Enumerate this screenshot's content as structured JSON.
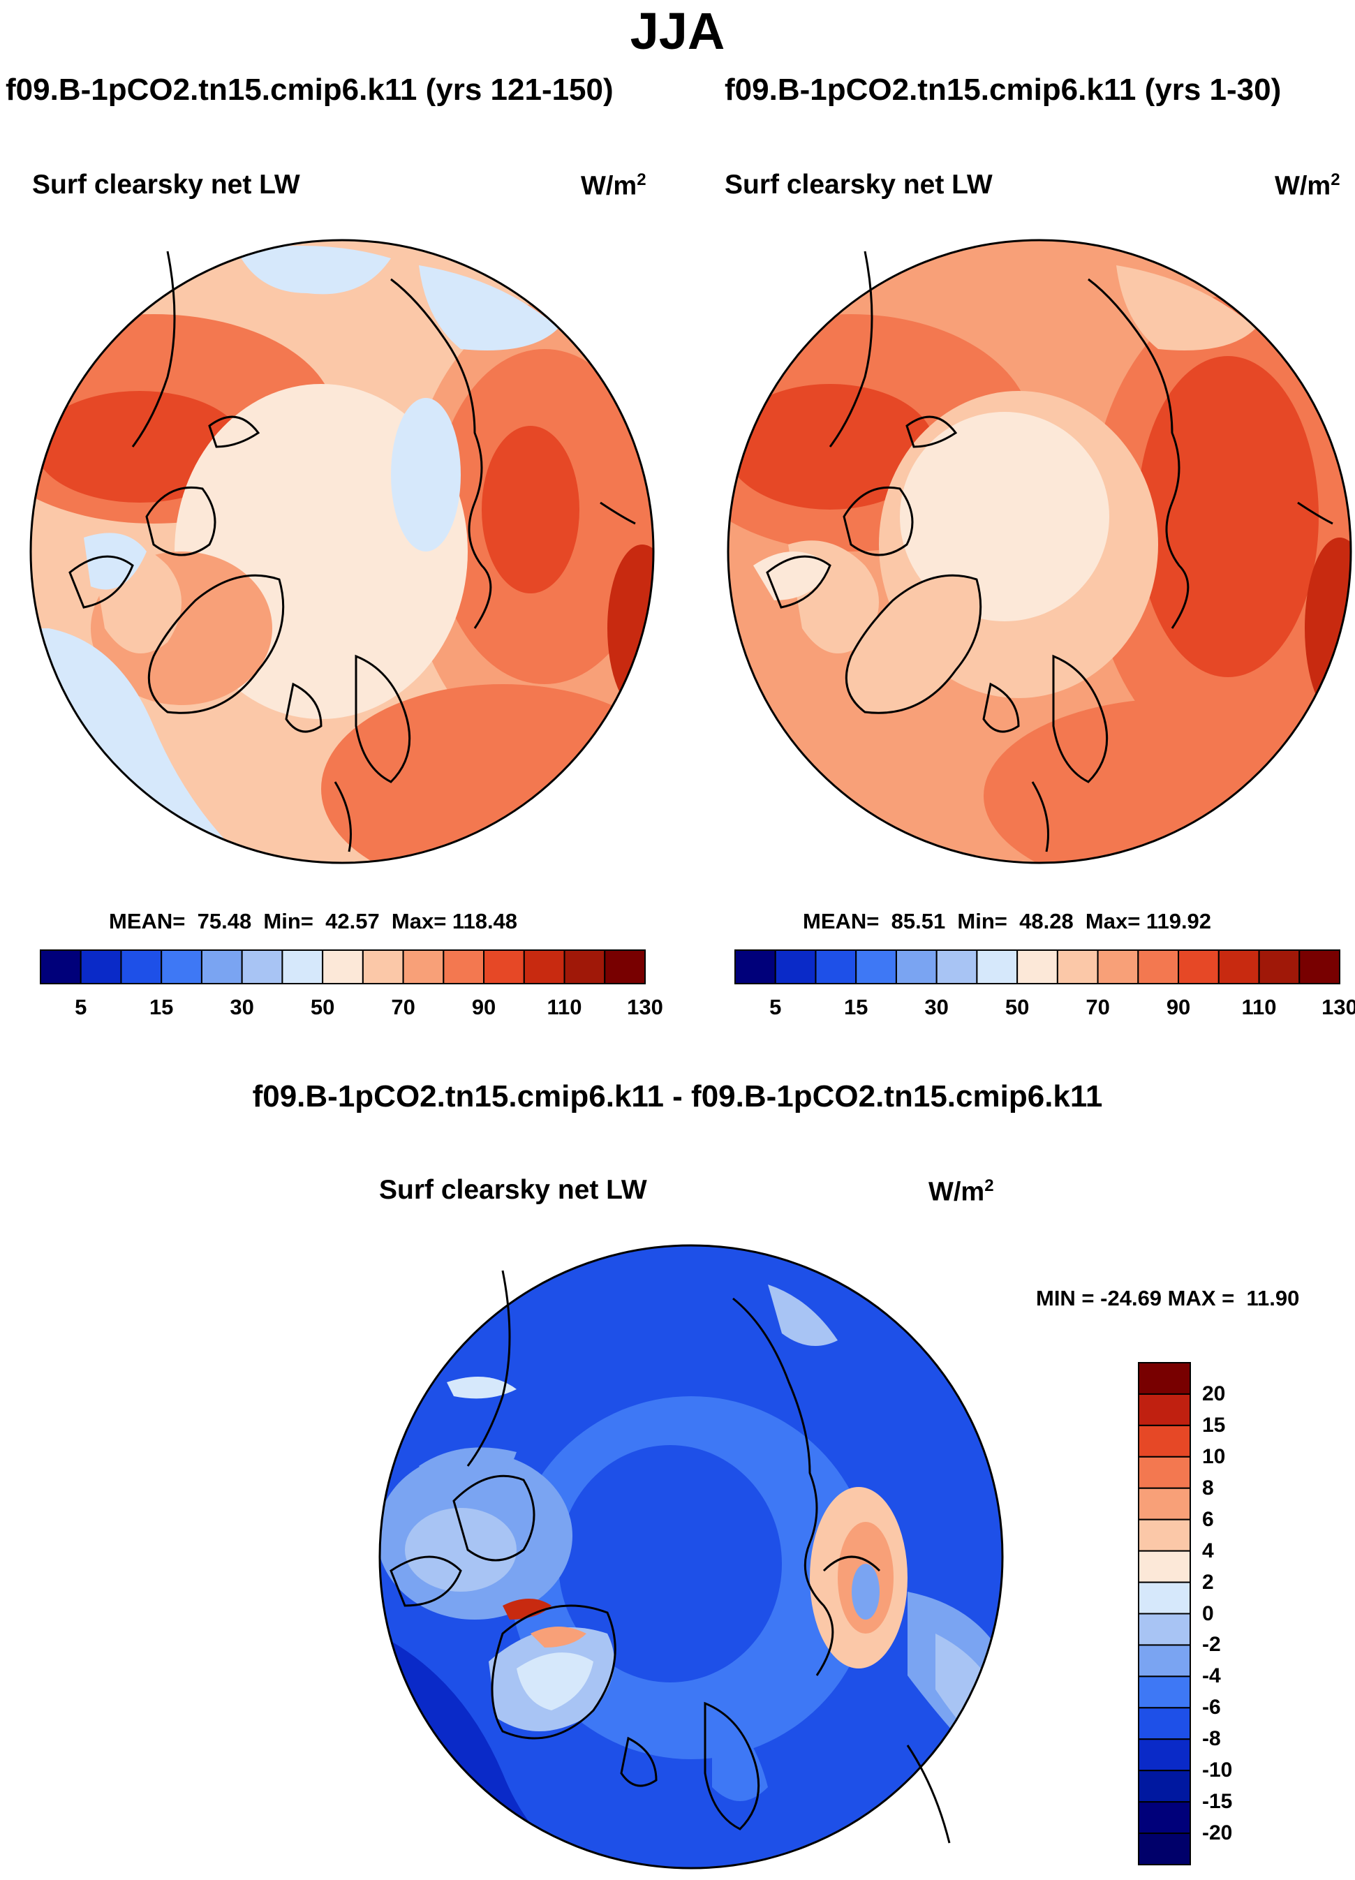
{
  "figure": {
    "title": "JJA",
    "variable": "Surf clearsky net LW",
    "units_base": "W/m",
    "units_exp": "2"
  },
  "panels": [
    {
      "case": "f09.B-1pCO2.tn15.cmip6.k11 (yrs 121-150)",
      "stats": "MEAN=  75.48  Min=  42.57  Max= 118.48"
    },
    {
      "case": "f09.B-1pCO2.tn15.cmip6.k11 (yrs 1-30)",
      "stats": "MEAN=  85.51  Min=  48.28  Max= 119.92"
    }
  ],
  "diff_panel": {
    "case": "f09.B-1pCO2.tn15.cmip6.k11 - f09.B-1pCO2.tn15.cmip6.k11",
    "stats": "MIN = -24.69 MAX =  11.90"
  },
  "chart_data": [
    {
      "type": "heatmap",
      "projection": "north polar stereographic",
      "title": "f09.B-1pCO2.tn15.cmip6.k11 (yrs 121-150)",
      "variable": "Surf clearsky net LW",
      "units": "W/m2",
      "mean": 75.48,
      "min": 42.57,
      "max": 118.48,
      "colorbar_ticks": [
        "5",
        "15",
        "30",
        "50",
        "70",
        "90",
        "110",
        "130"
      ],
      "colors": [
        "#00007a",
        "#0a2ac8",
        "#1e50e8",
        "#3e78f5",
        "#7aa4f2",
        "#a8c4f4",
        "#d6e8fb",
        "#fce8d8",
        "#fbc8a8",
        "#f8a078",
        "#f37850",
        "#e64826",
        "#c82a10",
        "#a01808",
        "#780000"
      ]
    },
    {
      "type": "heatmap",
      "projection": "north polar stereographic",
      "title": "f09.B-1pCO2.tn15.cmip6.k11 (yrs 1-30)",
      "variable": "Surf clearsky net LW",
      "units": "W/m2",
      "mean": 85.51,
      "min": 48.28,
      "max": 119.92,
      "colorbar_ticks": [
        "5",
        "15",
        "30",
        "50",
        "70",
        "90",
        "110",
        "130"
      ],
      "colors": [
        "#00007a",
        "#0a2ac8",
        "#1e50e8",
        "#3e78f5",
        "#7aa4f2",
        "#a8c4f4",
        "#d6e8fb",
        "#fce8d8",
        "#fbc8a8",
        "#f8a078",
        "#f37850",
        "#e64826",
        "#c82a10",
        "#a01808",
        "#780000"
      ]
    },
    {
      "type": "heatmap",
      "projection": "north polar stereographic",
      "title": "f09.B-1pCO2.tn15.cmip6.k11 - f09.B-1pCO2.tn15.cmip6.k11",
      "variable": "Surf clearsky net LW",
      "units": "W/m2",
      "min": -24.69,
      "max": 11.9,
      "colorbar_ticks": [
        "20",
        "15",
        "10",
        "8",
        "6",
        "4",
        "2",
        "0",
        "-2",
        "-4",
        "-6",
        "-8",
        "-10",
        "-15",
        "-20"
      ],
      "colors": [
        "#780000",
        "#c02010",
        "#e64826",
        "#f37850",
        "#f8a078",
        "#fbc8a8",
        "#fce8d8",
        "#d6e8fb",
        "#a8c4f4",
        "#7aa4f2",
        "#3e78f5",
        "#1e50e8",
        "#0a2ac8",
        "#0018a0",
        "#00007a"
      ]
    }
  ]
}
